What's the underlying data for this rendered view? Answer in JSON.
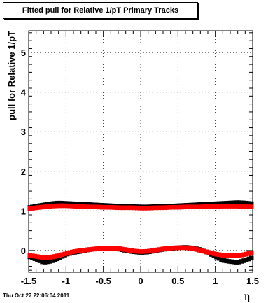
{
  "chart_data": {
    "type": "scatter",
    "title": "Fitted pull for Relative 1/pT  Primary Tracks",
    "xlabel": "η",
    "ylabel": "pull for Relative 1/pT",
    "xlim": [
      -1.5,
      1.5
    ],
    "ylim": [
      -0.55,
      5.55
    ],
    "x_ticks": [
      -1.5,
      -1,
      -0.5,
      0,
      0.5,
      1,
      1.5
    ],
    "x_tick_labels": [
      "-1.5",
      "-1",
      "-0.5",
      "0",
      "0.5",
      "1",
      "1.5"
    ],
    "y_ticks": [
      0,
      1,
      2,
      3,
      4,
      5
    ],
    "y_tick_labels": [
      "0",
      "1",
      "2",
      "3",
      "4",
      "5"
    ],
    "grid": true,
    "legend": "none",
    "series": [
      {
        "color": "#000000",
        "marker": "square",
        "x": [
          -1.5,
          -1.4,
          -1.3,
          -1.2,
          -1.1,
          -1.0,
          -0.9,
          -0.8,
          -0.7,
          -0.6,
          -0.5,
          -0.4,
          -0.3,
          -0.2,
          -0.1,
          0.0,
          0.1,
          0.2,
          0.3,
          0.4,
          0.5,
          0.6,
          0.7,
          0.8,
          0.9,
          1.0,
          1.1,
          1.2,
          1.3,
          1.4,
          1.5
        ],
        "y": [
          1.08,
          1.12,
          1.15,
          1.18,
          1.2,
          1.19,
          1.18,
          1.17,
          1.16,
          1.15,
          1.14,
          1.13,
          1.12,
          1.12,
          1.11,
          1.1,
          1.1,
          1.11,
          1.12,
          1.12,
          1.13,
          1.14,
          1.15,
          1.16,
          1.17,
          1.18,
          1.19,
          1.2,
          1.21,
          1.2,
          1.18
        ]
      },
      {
        "color": "#000000",
        "marker": "square",
        "x": [
          -1.5,
          -1.4,
          -1.3,
          -1.2,
          -1.1,
          -1.0,
          -0.9,
          -0.8,
          -0.7,
          -0.6,
          -0.5,
          -0.4,
          -0.3,
          -0.2,
          -0.1,
          0.0,
          0.1,
          0.2,
          0.3,
          0.4,
          0.5,
          0.6,
          0.7,
          0.8,
          0.9,
          1.0,
          1.1,
          1.2,
          1.3,
          1.4,
          1.5
        ],
        "y": [
          -0.15,
          -0.22,
          -0.3,
          -0.27,
          -0.2,
          -0.1,
          -0.05,
          -0.02,
          0.02,
          0.04,
          0.05,
          0.06,
          0.04,
          0.0,
          -0.03,
          -0.05,
          -0.04,
          0.0,
          0.03,
          0.05,
          0.07,
          0.08,
          0.06,
          0.02,
          -0.05,
          -0.15,
          -0.25,
          -0.28,
          -0.3,
          -0.25,
          -0.18
        ]
      },
      {
        "color": "#ff0000",
        "marker": "square",
        "x": [
          -1.5,
          -1.4,
          -1.3,
          -1.2,
          -1.1,
          -1.0,
          -0.9,
          -0.8,
          -0.7,
          -0.6,
          -0.5,
          -0.4,
          -0.3,
          -0.2,
          -0.1,
          0.0,
          0.1,
          0.2,
          0.3,
          0.4,
          0.5,
          0.6,
          0.7,
          0.8,
          0.9,
          1.0,
          1.1,
          1.2,
          1.3,
          1.4,
          1.5
        ],
        "y": [
          1.05,
          1.08,
          1.1,
          1.12,
          1.13,
          1.13,
          1.12,
          1.11,
          1.1,
          1.1,
          1.09,
          1.09,
          1.08,
          1.08,
          1.08,
          1.07,
          1.07,
          1.08,
          1.08,
          1.09,
          1.09,
          1.1,
          1.1,
          1.1,
          1.11,
          1.11,
          1.12,
          1.12,
          1.12,
          1.11,
          1.1
        ]
      },
      {
        "color": "#ff0000",
        "marker": "square",
        "x": [
          -1.5,
          -1.4,
          -1.3,
          -1.2,
          -1.1,
          -1.0,
          -0.9,
          -0.8,
          -0.7,
          -0.6,
          -0.5,
          -0.4,
          -0.3,
          -0.2,
          -0.1,
          0.0,
          0.1,
          0.2,
          0.3,
          0.4,
          0.5,
          0.6,
          0.7,
          0.8,
          0.9,
          1.0,
          1.1,
          1.2,
          1.3,
          1.4,
          1.5
        ],
        "y": [
          -0.12,
          -0.15,
          -0.18,
          -0.17,
          -0.13,
          -0.08,
          -0.03,
          0.0,
          0.02,
          0.04,
          0.05,
          0.06,
          0.05,
          0.02,
          -0.01,
          -0.03,
          -0.02,
          0.01,
          0.04,
          0.06,
          0.07,
          0.07,
          0.05,
          0.0,
          -0.04,
          -0.09,
          -0.12,
          -0.13,
          -0.13,
          -0.1,
          -0.05
        ]
      }
    ]
  },
  "timestamp": "Thu Oct 27 22:06:04 2011"
}
